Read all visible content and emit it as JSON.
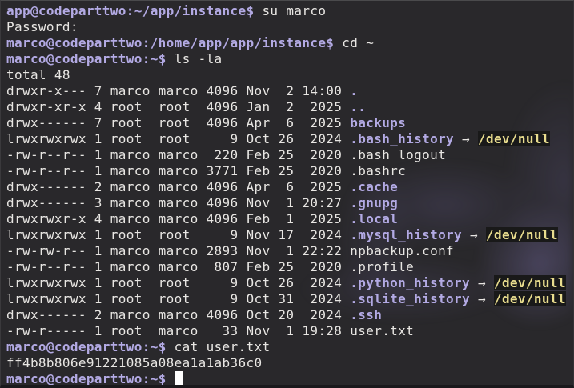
{
  "terminal": {
    "colors": {
      "background": "#29282b",
      "foreground": "#e8e6e3",
      "prompt": "#b3aae4",
      "directory": "#b3aae4",
      "device_fg": "#e9dd8e",
      "device_bg": "#191919",
      "cursor": "#ffffff",
      "watermark": "#8e80c8"
    },
    "cursor": {
      "visible": true,
      "shape": "block"
    },
    "lines": [
      [
        {
          "t": "app@codeparttwo:~/app/instance$",
          "s": "prompt"
        },
        {
          "t": " su marco",
          "s": "plain"
        }
      ],
      [
        {
          "t": "Password:",
          "s": "plain"
        }
      ],
      [
        {
          "t": "marco@codeparttwo:/home/app/app/instance$",
          "s": "prompt"
        },
        {
          "t": " cd ~",
          "s": "plain"
        }
      ],
      [
        {
          "t": "marco@codeparttwo:~$",
          "s": "prompt"
        },
        {
          "t": " ls -la",
          "s": "plain"
        }
      ],
      [
        {
          "t": "total 48",
          "s": "plain"
        }
      ],
      [
        {
          "t": "drwxr-x--- 7 marco marco 4096 Nov  2 14:00 ",
          "s": "plain"
        },
        {
          "t": ".",
          "s": "dir"
        }
      ],
      [
        {
          "t": "drwxr-xr-x 4 root  root  4096 Jan  2  2025 ",
          "s": "plain"
        },
        {
          "t": "..",
          "s": "dir"
        }
      ],
      [
        {
          "t": "drwx------ 7 root  root  4096 Apr  6  2025 ",
          "s": "plain"
        },
        {
          "t": "backups",
          "s": "dir"
        }
      ],
      [
        {
          "t": "lrwxrwxrwx 1 root  root     9 Oct 26  2024 ",
          "s": "plain"
        },
        {
          "t": ".bash_history",
          "s": "link"
        },
        {
          "t": " → ",
          "s": "plain"
        },
        {
          "t": "/dev/null",
          "s": "dev"
        }
      ],
      [
        {
          "t": "-rw-r--r-- 1 marco marco  220 Feb 25  2020 .bash_logout",
          "s": "plain"
        }
      ],
      [
        {
          "t": "-rw-r--r-- 1 marco marco 3771 Feb 25  2020 .bashrc",
          "s": "plain"
        }
      ],
      [
        {
          "t": "drwx------ 2 marco marco 4096 Apr  6  2025 ",
          "s": "plain"
        },
        {
          "t": ".cache",
          "s": "dir"
        }
      ],
      [
        {
          "t": "drwx------ 3 marco marco 4096 Nov  1 20:27 ",
          "s": "plain"
        },
        {
          "t": ".gnupg",
          "s": "dir"
        }
      ],
      [
        {
          "t": "drwxrwxr-x 4 marco marco 4096 Feb  1  2025 ",
          "s": "plain"
        },
        {
          "t": ".local",
          "s": "dir"
        }
      ],
      [
        {
          "t": "lrwxrwxrwx 1 root  root     9 Nov 17  2024 ",
          "s": "plain"
        },
        {
          "t": ".mysql_history",
          "s": "link"
        },
        {
          "t": " → ",
          "s": "plain"
        },
        {
          "t": "/dev/null",
          "s": "dev"
        }
      ],
      [
        {
          "t": "-rw-rw-r-- 1 marco marco 2893 Nov  1 22:22 npbackup.conf",
          "s": "plain"
        }
      ],
      [
        {
          "t": "-rw-r--r-- 1 marco marco  807 Feb 25  2020 .profile",
          "s": "plain"
        }
      ],
      [
        {
          "t": "lrwxrwxrwx 1 root  root     9 Oct 26  2024 ",
          "s": "plain"
        },
        {
          "t": ".python_history",
          "s": "link"
        },
        {
          "t": " → ",
          "s": "plain"
        },
        {
          "t": "/dev/null",
          "s": "dev"
        }
      ],
      [
        {
          "t": "lrwxrwxrwx 1 root  root     9 Oct 31  2024 ",
          "s": "plain"
        },
        {
          "t": ".sqlite_history",
          "s": "link"
        },
        {
          "t": " → ",
          "s": "plain"
        },
        {
          "t": "/dev/null",
          "s": "dev"
        }
      ],
      [
        {
          "t": "drwx------ 2 marco marco 4096 Oct 20  2024 ",
          "s": "plain"
        },
        {
          "t": ".ssh",
          "s": "dir"
        }
      ],
      [
        {
          "t": "-rw-r----- 1 root  marco   33 Nov  1 19:28 user.txt",
          "s": "plain"
        }
      ],
      [
        {
          "t": "marco@codeparttwo:~$",
          "s": "prompt"
        },
        {
          "t": " cat user.txt",
          "s": "plain"
        }
      ],
      [
        {
          "t": "ff4b8b806e91221085a08ea1a1ab36c0",
          "s": "plain"
        }
      ],
      [
        {
          "t": "marco@codeparttwo:~$",
          "s": "prompt"
        },
        {
          "t": " ",
          "s": "plain"
        },
        {
          "t": " ",
          "s": "cursor"
        }
      ]
    ]
  }
}
